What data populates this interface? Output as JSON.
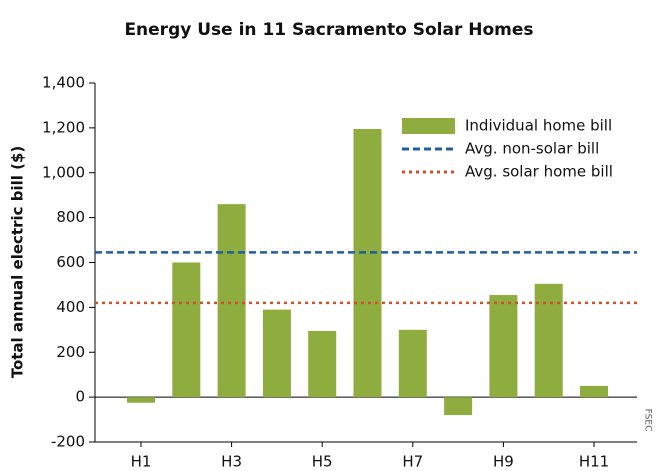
{
  "chart_data": {
    "type": "bar",
    "title": "Energy Use in 11 Sacramento Solar Homes",
    "y_label": "Total annual electric bill ($)",
    "source": "FSEC",
    "categories": [
      "H1",
      null,
      "H3",
      null,
      "H5",
      null,
      "H7",
      null,
      "H9",
      null,
      "H11"
    ],
    "series": [
      {
        "name": "Individual home bill",
        "color": "#8fac3e",
        "values": [
          -25,
          600,
          860,
          390,
          295,
          1195,
          300,
          -80,
          455,
          505,
          50
        ]
      }
    ],
    "reference_lines": [
      {
        "name": "Avg. non-solar bill",
        "value": 645,
        "color": "#1f5fa0",
        "style": "dashed"
      },
      {
        "name": "Avg. solar home bill",
        "value": 420,
        "color": "#d0502a",
        "style": "dotted"
      }
    ],
    "ylim": [
      -200,
      1400
    ],
    "yticks": [
      -200,
      0,
      200,
      400,
      600,
      800,
      {
        "value": 1000,
        "label": "1,000"
      },
      {
        "value": 1200,
        "label": "1,200"
      },
      {
        "value": 1400,
        "label": "1,400"
      }
    ],
    "legend": "upper right"
  }
}
